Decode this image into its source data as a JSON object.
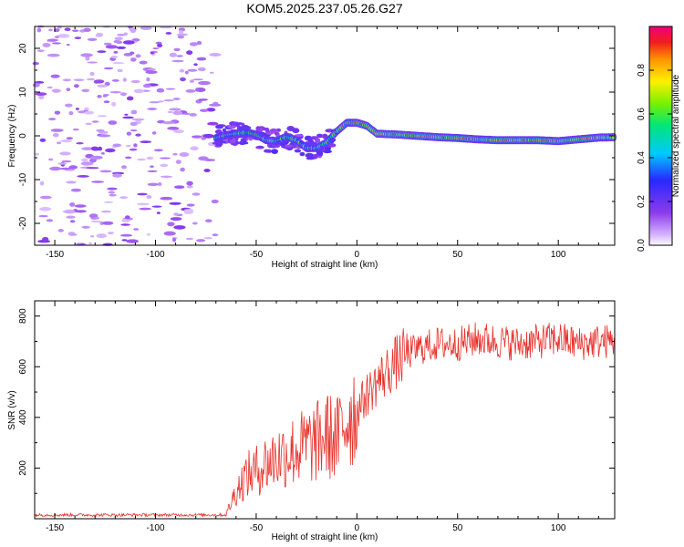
{
  "chart_data": [
    {
      "type": "heatmap",
      "title": "KOM5.2025.237.05.26.G27",
      "xlabel": "Height of straight line (km)",
      "ylabel": "Frequency (Hz)",
      "xlim": [
        -160,
        128
      ],
      "ylim": [
        -25,
        25
      ],
      "xticks": [
        -150,
        -100,
        -50,
        0,
        50,
        100
      ],
      "yticks": [
        -20,
        -10,
        0,
        10,
        20
      ],
      "noise_region_x": [
        -160,
        -70
      ],
      "ridge": {
        "x": [
          -70,
          -65,
          -60,
          -55,
          -50,
          -45,
          -40,
          -35,
          -30,
          -25,
          -20,
          -15,
          -10,
          -5,
          0,
          5,
          10,
          20,
          30,
          40,
          50,
          60,
          70,
          80,
          90,
          100,
          110,
          120,
          128
        ],
        "frequency": [
          -0.5,
          0.2,
          0.5,
          0.8,
          0.3,
          -1.0,
          -1.2,
          -0.2,
          -1.0,
          -2.8,
          -2.8,
          -1.5,
          1.0,
          3.0,
          3.0,
          2.3,
          0.5,
          0.3,
          0.0,
          -0.3,
          -0.5,
          -0.8,
          -1.0,
          -1.0,
          -1.0,
          -1.2,
          -0.8,
          -0.4,
          -0.3
        ]
      },
      "colorbar": {
        "label": "Normalized spectral amplitude",
        "range": [
          0.0,
          1.0
        ],
        "ticks": [
          "0.0",
          "0.2",
          "0.4",
          "0.6",
          "0.8"
        ]
      }
    },
    {
      "type": "line",
      "series": [
        {
          "name": "SNR",
          "x": [
            -160,
            -80,
            -65,
            -60,
            -55,
            -50,
            -45,
            -40,
            -35,
            -30,
            -25,
            -20,
            -15,
            -10,
            -5,
            0,
            5,
            10,
            15,
            20,
            25,
            30,
            40,
            50,
            60,
            70,
            80,
            90,
            100,
            110,
            120,
            128
          ],
          "y": [
            15,
            15,
            15,
            110,
            170,
            190,
            220,
            240,
            260,
            270,
            290,
            300,
            330,
            310,
            400,
            430,
            490,
            540,
            580,
            620,
            650,
            670,
            690,
            690,
            710,
            700,
            690,
            700,
            710,
            690,
            700,
            700
          ],
          "color": "#e8302a"
        }
      ],
      "xlabel": "Height of straight line (km)",
      "ylabel": "SNR (v/v)",
      "xlim": [
        -160,
        128
      ],
      "ylim": [
        0,
        860
      ],
      "xticks": [
        -150,
        -100,
        -50,
        0,
        50,
        100
      ],
      "yticks": [
        200,
        400,
        600,
        800
      ]
    }
  ]
}
